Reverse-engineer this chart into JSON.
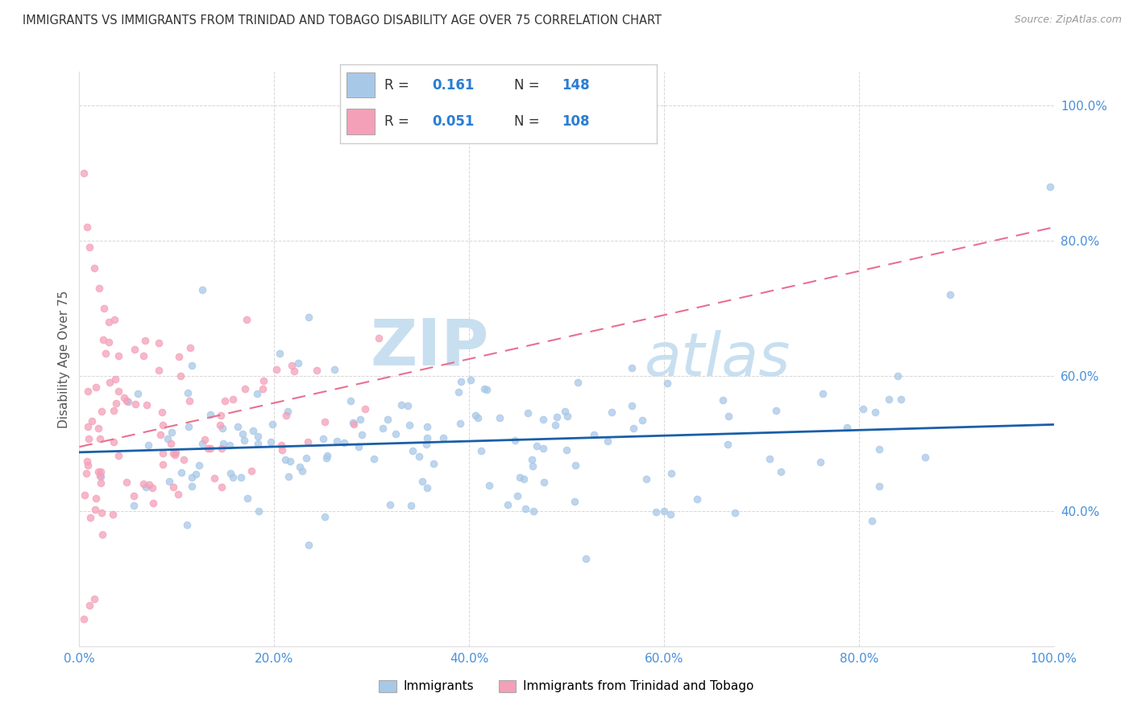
{
  "title": "IMMIGRANTS VS IMMIGRANTS FROM TRINIDAD AND TOBAGO DISABILITY AGE OVER 75 CORRELATION CHART",
  "source_text": "Source: ZipAtlas.com",
  "ylabel": "Disability Age Over 75",
  "legend1_label": "Immigrants",
  "legend2_label": "Immigrants from Trinidad and Tobago",
  "R1": 0.161,
  "N1": 148,
  "R2": 0.051,
  "N2": 108,
  "blue_dot_color": "#a8c8e8",
  "pink_dot_color": "#f4a0b8",
  "blue_line_color": "#1a5fa8",
  "pink_line_color": "#e87090",
  "tick_label_color": "#4a90d9",
  "grid_color": "#cccccc",
  "watermark_color": "#c8dff0",
  "xlim": [
    0.0,
    1.0
  ],
  "ylim": [
    0.2,
    1.05
  ],
  "xticks": [
    0.0,
    0.2,
    0.4,
    0.6,
    0.8,
    1.0
  ],
  "xticklabels": [
    "0.0%",
    "20.0%",
    "40.0%",
    "60.0%",
    "80.0%",
    "100.0%"
  ],
  "yticks": [
    0.4,
    0.6,
    0.8,
    1.0
  ],
  "yticklabels": [
    "40.0%",
    "60.0%",
    "80.0%",
    "100.0%"
  ],
  "blue_line_x0": 0.0,
  "blue_line_y0": 0.487,
  "blue_line_x1": 1.0,
  "blue_line_y1": 0.528,
  "pink_line_x0": 0.0,
  "pink_line_y0": 0.495,
  "pink_line_x1": 1.0,
  "pink_line_y1": 0.82
}
